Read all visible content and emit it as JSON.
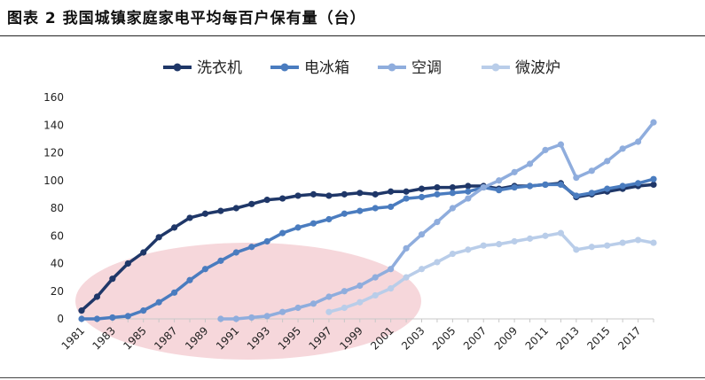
{
  "figure_title": "图表 2 我国城镇家庭家电平均每百户保有量（台）",
  "colors": {
    "washer": "#1f3768",
    "fridge": "#4a7cbf",
    "ac": "#8faddd",
    "microwave": "#b9cde9",
    "highlight": "#f3c9cf"
  },
  "chart_data": {
    "type": "line",
    "title": "图表 2 我国城镇家庭家电平均每百户保有量（台）",
    "xlabel": "",
    "ylabel": "",
    "ylim": [
      0,
      160
    ],
    "yticks": [
      0,
      20,
      40,
      60,
      80,
      100,
      120,
      140,
      160
    ],
    "xlim": [
      1981,
      2018
    ],
    "xtick_labels": [
      "1981",
      "1983",
      "1985",
      "1987",
      "1989",
      "1991",
      "1993",
      "1995",
      "1997",
      "1999",
      "2001",
      "2003",
      "2005",
      "2007",
      "2009",
      "2011",
      "2013",
      "2015",
      "2017"
    ],
    "legend_position": "top",
    "series": [
      {
        "name": "洗衣机",
        "key": "washer",
        "x": [
          1981,
          1982,
          1983,
          1984,
          1985,
          1986,
          1987,
          1988,
          1989,
          1990,
          1991,
          1992,
          1993,
          1994,
          1995,
          1996,
          1997,
          1998,
          1999,
          2000,
          2001,
          2002,
          2003,
          2004,
          2005,
          2006,
          2007,
          2008,
          2009,
          2010,
          2011,
          2012,
          2013,
          2014,
          2015,
          2016,
          2017,
          2018
        ],
        "values": [
          6,
          16,
          29,
          40,
          48,
          59,
          66,
          73,
          76,
          78,
          80,
          83,
          86,
          87,
          89,
          90,
          89,
          90,
          91,
          90,
          92,
          92,
          94,
          95,
          95,
          96,
          96,
          94,
          96,
          96,
          97,
          98,
          88,
          90,
          92,
          94,
          96,
          97
        ]
      },
      {
        "name": "电冰箱",
        "key": "fridge",
        "x": [
          1981,
          1982,
          1983,
          1984,
          1985,
          1986,
          1987,
          1988,
          1989,
          1990,
          1991,
          1992,
          1993,
          1994,
          1995,
          1996,
          1997,
          1998,
          1999,
          2000,
          2001,
          2002,
          2003,
          2004,
          2005,
          2006,
          2007,
          2008,
          2009,
          2010,
          2011,
          2012,
          2013,
          2014,
          2015,
          2016,
          2017,
          2018
        ],
        "values": [
          0,
          0,
          1,
          2,
          6,
          12,
          19,
          28,
          36,
          42,
          48,
          52,
          56,
          62,
          66,
          69,
          72,
          76,
          78,
          80,
          81,
          87,
          88,
          90,
          91,
          92,
          95,
          93,
          95,
          96,
          97,
          97,
          89,
          91,
          94,
          96,
          98,
          101
        ]
      },
      {
        "name": "空调",
        "key": "ac",
        "x": [
          1990,
          1991,
          1992,
          1993,
          1994,
          1995,
          1996,
          1997,
          1998,
          1999,
          2000,
          2001,
          2002,
          2003,
          2004,
          2005,
          2006,
          2007,
          2008,
          2009,
          2010,
          2011,
          2012,
          2013,
          2014,
          2015,
          2016,
          2017,
          2018
        ],
        "values": [
          0,
          0,
          1,
          2,
          5,
          8,
          11,
          16,
          20,
          24,
          30,
          36,
          51,
          61,
          70,
          80,
          87,
          95,
          100,
          106,
          112,
          122,
          126,
          102,
          107,
          114,
          123,
          128,
          142
        ]
      },
      {
        "name": "微波炉",
        "key": "microwave",
        "x": [
          1997,
          1998,
          1999,
          2000,
          2001,
          2002,
          2003,
          2004,
          2005,
          2006,
          2007,
          2008,
          2009,
          2010,
          2011,
          2012,
          2013,
          2014,
          2015,
          2016,
          2017,
          2018
        ],
        "values": [
          5,
          8,
          12,
          17,
          22,
          30,
          36,
          41,
          47,
          50,
          53,
          54,
          56,
          58,
          60,
          62,
          50,
          52,
          53,
          55,
          57,
          55
        ]
      }
    ]
  }
}
